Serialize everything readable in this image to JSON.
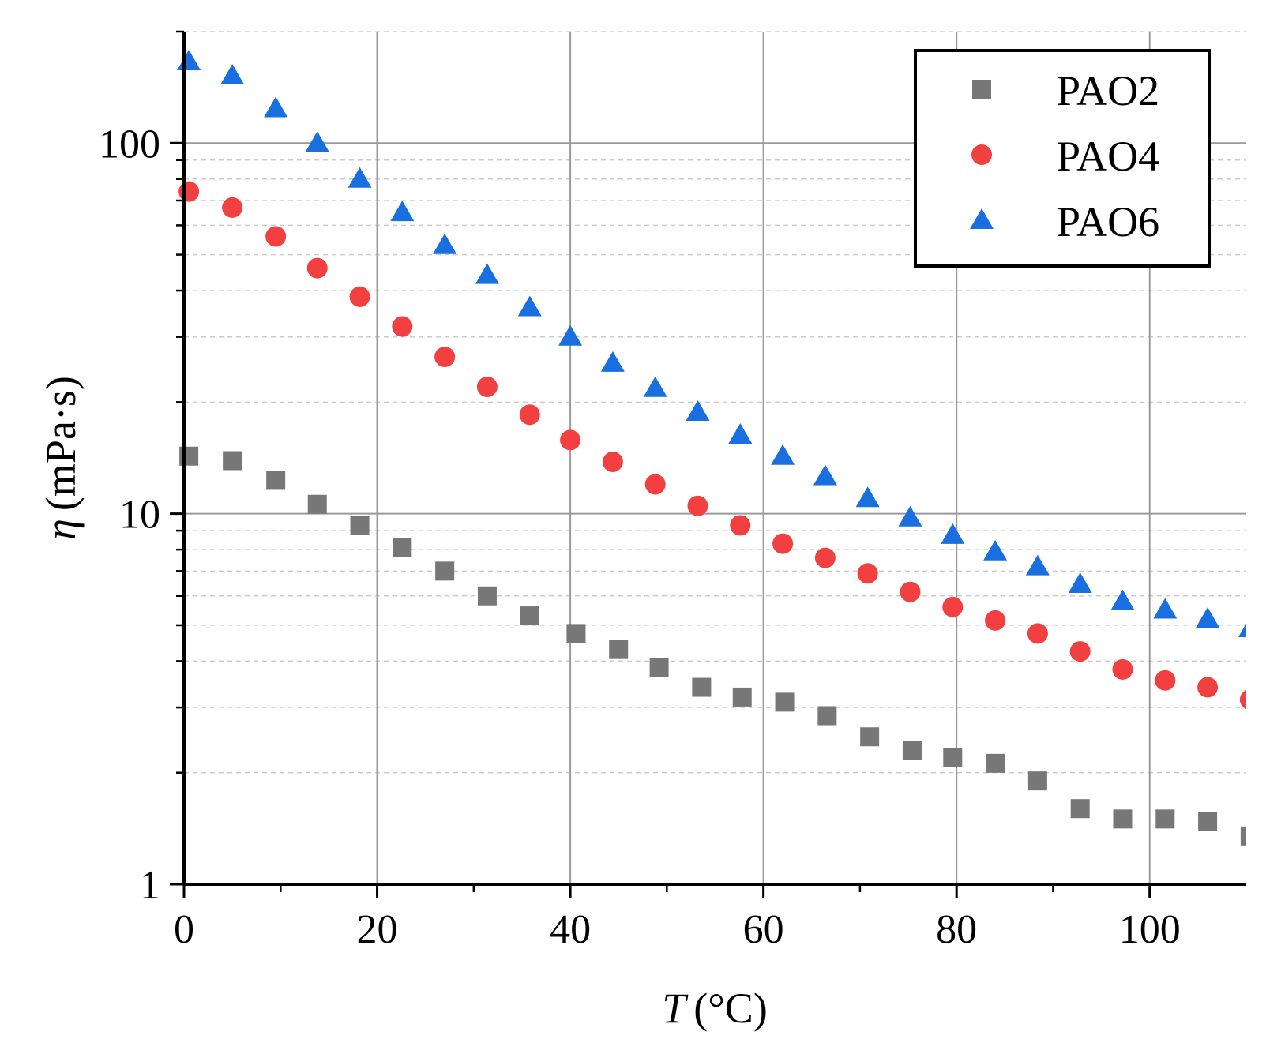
{
  "chart_data": {
    "type": "scatter",
    "title": "",
    "xlabel": {
      "symbol": "T",
      "unit": "(°C)"
    },
    "ylabel": {
      "symbol": "η",
      "unit": "(mPa·s)"
    },
    "xlim": [
      0,
      110
    ],
    "ylim": [
      1,
      200
    ],
    "yscale": "log",
    "grid": true,
    "legend_position": "top-right",
    "x_ticks": [
      0,
      20,
      40,
      60,
      80,
      100
    ],
    "x_tick_labels": [
      "0",
      "20",
      "40",
      "60",
      "80",
      "100"
    ],
    "y_ticks": [
      1,
      10,
      100
    ],
    "y_tick_labels": [
      "1",
      "10",
      "100"
    ],
    "series": [
      {
        "name": "PAO2",
        "marker": "square",
        "color": "#777777",
        "x": [
          0.5,
          5,
          9.5,
          13.8,
          18.2,
          22.6,
          27,
          31.4,
          35.8,
          40.6,
          45,
          49.2,
          53.6,
          57.8,
          62.2,
          66.6,
          71,
          75.4,
          79.6,
          84,
          88.4,
          92.8,
          97.2,
          101.6,
          106,
          110.4
        ],
        "y": [
          14.3,
          13.9,
          12.3,
          10.6,
          9.3,
          8.1,
          7.0,
          6.0,
          5.3,
          4.75,
          4.3,
          3.85,
          3.4,
          3.2,
          3.1,
          2.85,
          2.5,
          2.3,
          2.2,
          2.12,
          1.9,
          1.6,
          1.5,
          1.5,
          1.48,
          1.35
        ]
      },
      {
        "name": "PAO4",
        "marker": "circle",
        "color": "#f23f3f",
        "x": [
          0.5,
          5,
          9.5,
          13.8,
          18.2,
          22.6,
          27,
          31.4,
          35.8,
          40,
          44.4,
          48.8,
          53.2,
          57.6,
          62,
          66.4,
          70.8,
          75.2,
          79.6,
          84,
          88.4,
          92.8,
          97.2,
          101.6,
          106,
          110.4
        ],
        "y": [
          74,
          67,
          56,
          46,
          38.5,
          32,
          26.5,
          22,
          18.5,
          15.8,
          13.8,
          12,
          10.5,
          9.3,
          8.3,
          7.6,
          6.9,
          6.15,
          5.6,
          5.15,
          4.75,
          4.25,
          3.8,
          3.55,
          3.4,
          3.15
        ]
      },
      {
        "name": "PAO6",
        "marker": "triangle",
        "color": "#1a6fe0",
        "x": [
          0.5,
          5,
          9.5,
          13.8,
          18.2,
          22.6,
          27,
          31.4,
          35.8,
          40,
          44.4,
          48.8,
          53.2,
          57.6,
          62,
          66.4,
          70.8,
          75.2,
          79.6,
          84,
          88.4,
          92.8,
          97.2,
          101.6,
          106,
          110.4
        ],
        "y": [
          166,
          152,
          124,
          100,
          80,
          65,
          53,
          44,
          36,
          30,
          25.5,
          21.8,
          18.8,
          16.3,
          14.3,
          12.6,
          11.0,
          9.75,
          8.75,
          7.9,
          7.2,
          6.45,
          5.8,
          5.5,
          5.2,
          4.9
        ]
      }
    ]
  }
}
